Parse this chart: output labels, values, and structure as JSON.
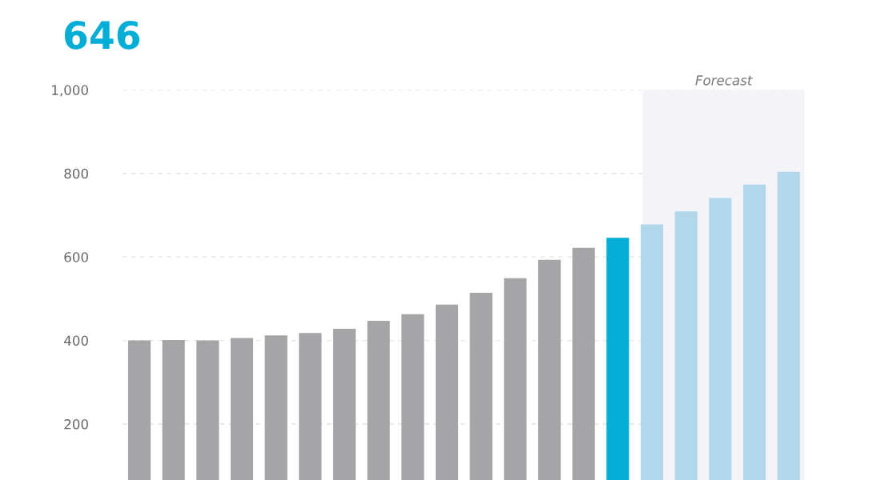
{
  "chart_data": {
    "type": "bar",
    "title": "646",
    "categories": [
      null,
      null,
      null,
      null,
      null,
      null,
      null,
      null,
      null,
      null,
      null,
      null,
      null,
      null,
      null,
      null,
      null,
      null,
      null,
      null
    ],
    "values": [
      400,
      401,
      400,
      406,
      412,
      418,
      428,
      447,
      463,
      486,
      514,
      549,
      593,
      622,
      646,
      678,
      709,
      741,
      773,
      804
    ],
    "colors": [
      "#a5a5a7",
      "#a5a5a7",
      "#a5a5a7",
      "#a5a5a7",
      "#a5a5a7",
      "#a5a5a7",
      "#a5a5a7",
      "#a5a5a7",
      "#a5a5a7",
      "#a5a5a7",
      "#a5a5a7",
      "#a5a5a7",
      "#a5a5a7",
      "#a5a5a7",
      "#05aed6",
      "#b3d7ea",
      "#b3d7ea",
      "#b3d7ea",
      "#b3d7ea",
      "#b3d7ea"
    ],
    "ylim": [
      66,
      1000
    ],
    "yticks": [
      200,
      400,
      600,
      800,
      {
        "value": 1000,
        "label": "1,000"
      }
    ],
    "annotations": [
      "Forecast"
    ],
    "grid": "y"
  }
}
